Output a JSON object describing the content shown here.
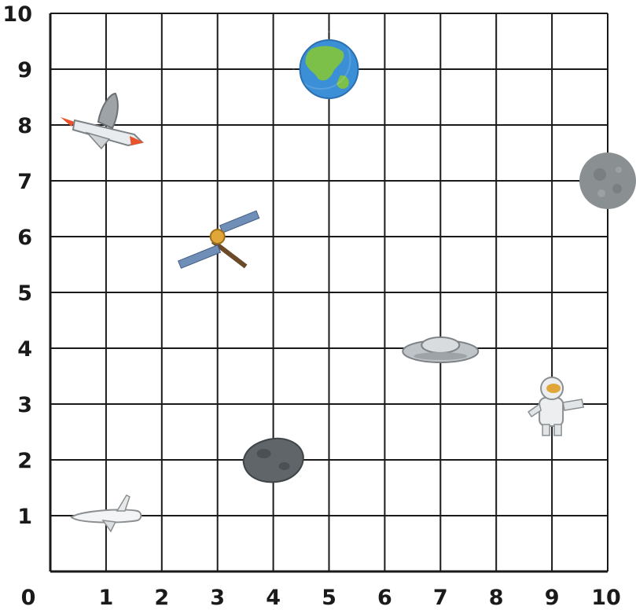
{
  "chart_data": {
    "type": "scatter",
    "xlim": [
      0,
      10
    ],
    "ylim": [
      0,
      10
    ],
    "grid": true,
    "x_ticks": [
      "0",
      "1",
      "2",
      "3",
      "4",
      "5",
      "6",
      "7",
      "8",
      "9",
      "10"
    ],
    "y_ticks": [
      "1",
      "2",
      "3",
      "4",
      "5",
      "6",
      "7",
      "8",
      "9",
      "10"
    ],
    "points": [
      {
        "icon": "rocket-icon",
        "x": 1,
        "y": 8
      },
      {
        "icon": "earth-icon",
        "x": 5,
        "y": 9
      },
      {
        "icon": "moon-icon",
        "x": 10,
        "y": 7
      },
      {
        "icon": "satellite-icon",
        "x": 3,
        "y": 6
      },
      {
        "icon": "ufo-icon",
        "x": 7,
        "y": 4
      },
      {
        "icon": "astronaut-icon",
        "x": 9,
        "y": 3
      },
      {
        "icon": "asteroid-icon",
        "x": 4,
        "y": 2
      },
      {
        "icon": "space-shuttle-icon",
        "x": 1,
        "y": 1
      }
    ]
  },
  "colors": {
    "grid": "#1a1a1a",
    "ocean": "#3b8fd6",
    "land": "#7cc04a",
    "moon": "#8a8f92",
    "asteroid": "#5f6569",
    "metal": "#bfc4c8",
    "flame": "#e8532b",
    "gold": "#e0a637",
    "panel": "#6f8fb8"
  }
}
